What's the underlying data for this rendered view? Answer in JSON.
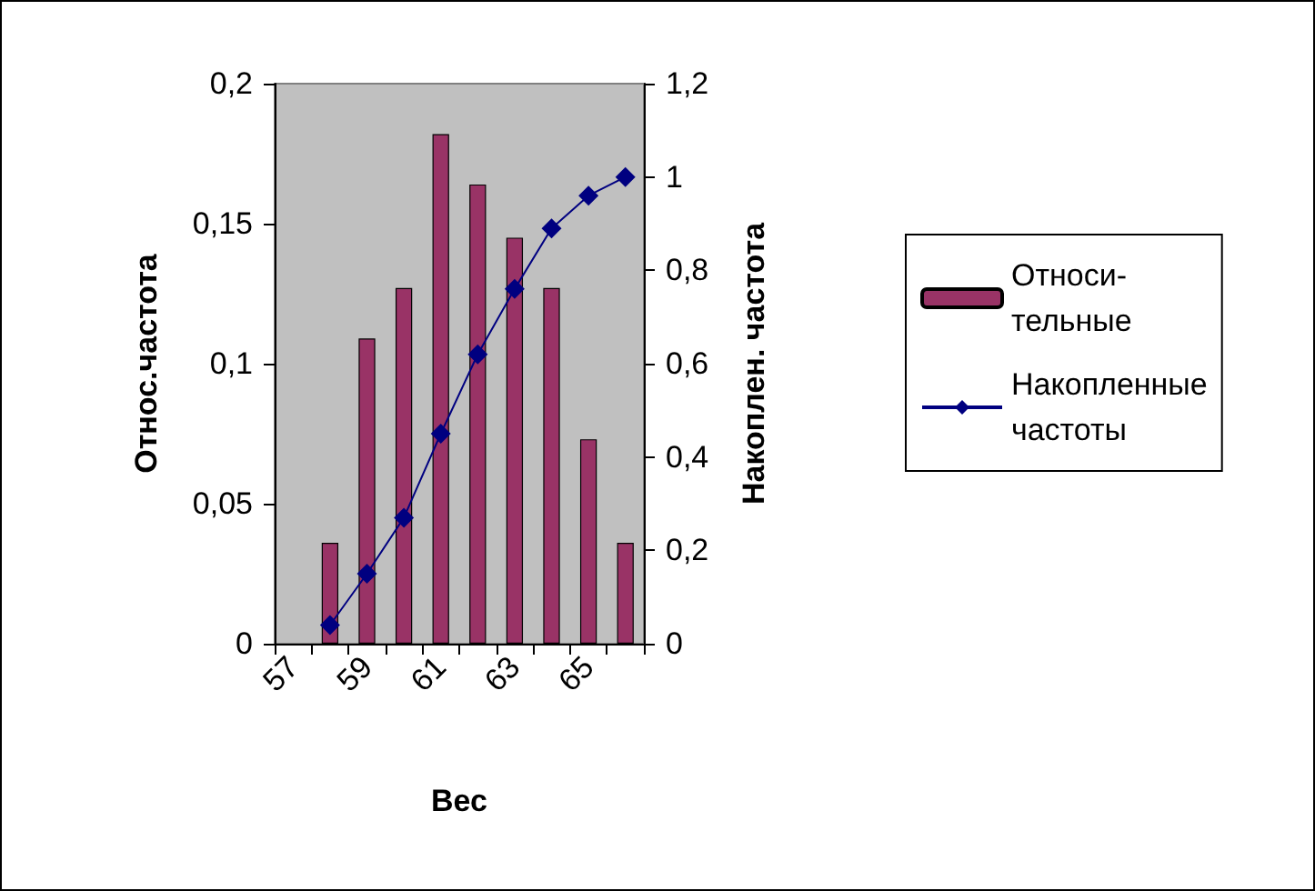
{
  "chart_data": {
    "type": "bar",
    "xlabel": "Вес",
    "ylabel": "Относ.частота",
    "y2label": "Накоплен. частота",
    "categories": [
      "57",
      null,
      "59",
      null,
      "61",
      null,
      "63",
      null,
      "65",
      null
    ],
    "series": [
      {
        "name": "Относи-\nтельные",
        "color": "#993366",
        "values": [
          null,
          0.036,
          0.109,
          0.127,
          0.182,
          0.164,
          0.145,
          0.127,
          0.073,
          0.036
        ]
      },
      {
        "name": "Накопленные\nчастоты",
        "type": "line",
        "axis": "y2",
        "color": "#000080",
        "values": [
          null,
          0.04,
          0.15,
          0.27,
          0.45,
          0.62,
          0.76,
          0.89,
          0.96,
          1
        ]
      }
    ],
    "ylim": [
      0,
      0.2
    ],
    "yticks": [
      0,
      {
        "value": 0.05,
        "label": "0,05"
      },
      {
        "value": 0.1,
        "label": "0,1"
      },
      {
        "value": 0.15,
        "label": "0,15"
      },
      {
        "value": 0.2,
        "label": "0,2"
      }
    ],
    "y2lim": [
      0,
      1.2
    ],
    "y2ticks": [
      0,
      {
        "value": 0.2,
        "label": "0,2"
      },
      {
        "value": 0.4,
        "label": "0,4"
      },
      {
        "value": 0.6,
        "label": "0,6"
      },
      {
        "value": 0.8,
        "label": "0,8"
      },
      1,
      {
        "value": 1.2,
        "label": "1,2"
      }
    ],
    "grid": false,
    "legend": "right",
    "marker": "diamond",
    "line_style": "solid"
  }
}
